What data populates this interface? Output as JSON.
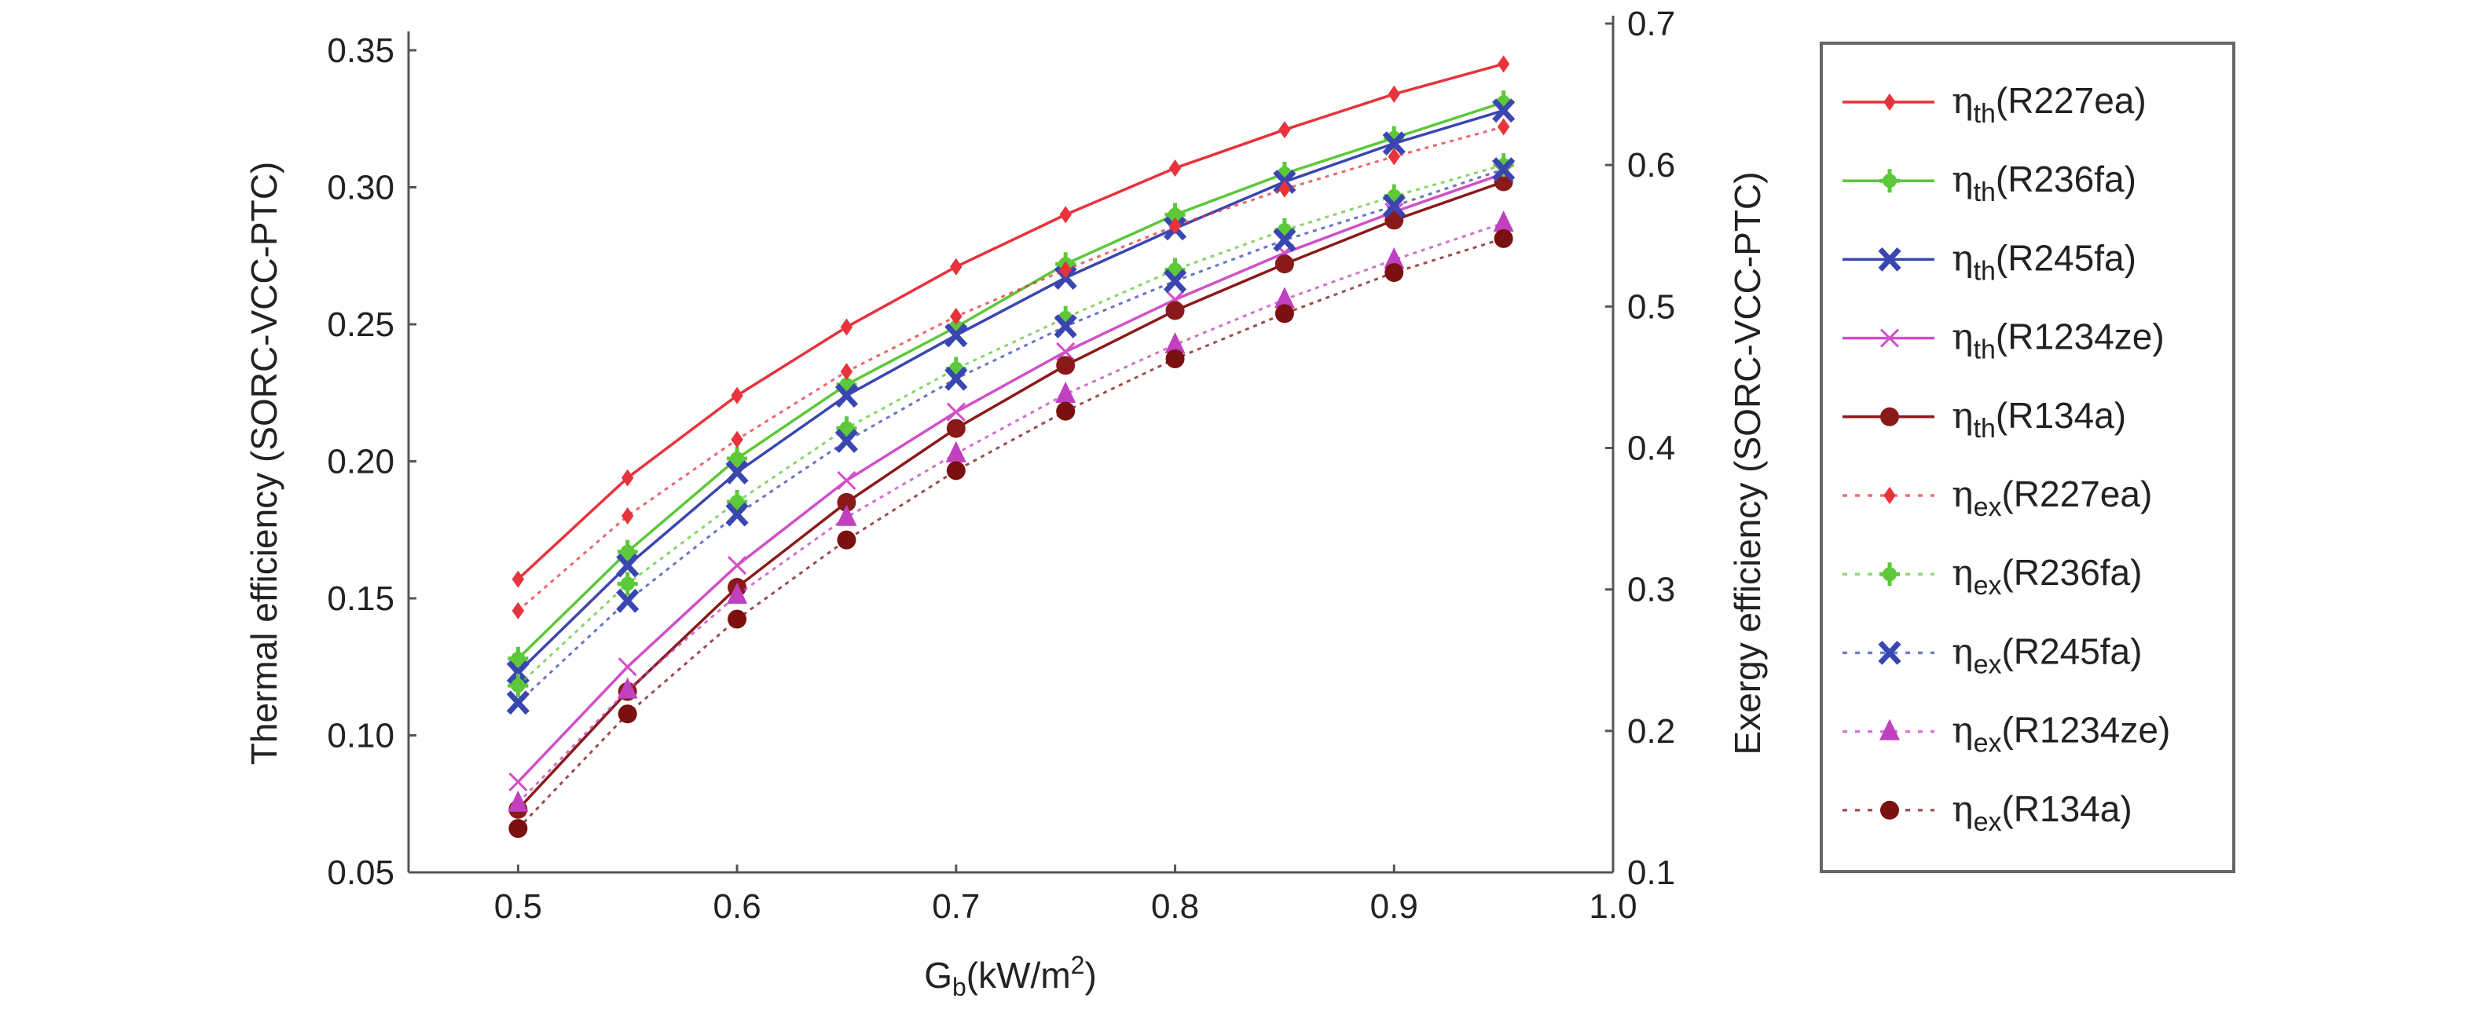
{
  "chart_data": {
    "type": "line",
    "title": "",
    "xlabel": "G",
    "xlabel_sub": "b",
    "xlabel_unit": "(kW/m",
    "xlabel_sup": "2",
    "xlabel_end": ")",
    "ylabel_left": "Thermal efficiency (SORC-VCC-PTC)",
    "ylabel_right": "Exergy efficiency (SORC-VCC-PTC)",
    "xlim": [
      0.45,
      1.0
    ],
    "ylim_left": [
      0.05,
      0.35
    ],
    "ylim_right": [
      0.1,
      0.7
    ],
    "xticks": [
      "0.5",
      "0.6",
      "0.7",
      "0.8",
      "0.9",
      "1.0"
    ],
    "yticks_left": [
      "0.05",
      "0.10",
      "0.15",
      "0.20",
      "0.25",
      "0.30",
      "0.35"
    ],
    "yticks_right": [
      "0.1",
      "0.2",
      "0.3",
      "0.4",
      "0.5",
      "0.6",
      "0.7"
    ],
    "legend_position": "right-outside",
    "x": [
      0.5,
      0.55,
      0.6,
      0.65,
      0.7,
      0.75,
      0.8,
      0.85,
      0.9,
      0.95
    ],
    "series": [
      {
        "name": "R227ea",
        "sym": "η",
        "sub": "th",
        "axis": "left",
        "color": "#e8323c",
        "dash": false,
        "marker": "diamond",
        "values": [
          0.157,
          0.194,
          0.224,
          0.249,
          0.271,
          0.29,
          0.307,
          0.321,
          0.334,
          0.345
        ]
      },
      {
        "name": "R236fa",
        "sym": "η",
        "sub": "th",
        "axis": "left",
        "color": "#5cc83a",
        "dash": false,
        "marker": "plus",
        "values": [
          0.128,
          0.167,
          0.201,
          0.228,
          0.249,
          0.272,
          0.29,
          0.305,
          0.318,
          0.331
        ]
      },
      {
        "name": "R245fa",
        "sym": "η",
        "sub": "th",
        "axis": "left",
        "color": "#3a46b0",
        "dash": false,
        "marker": "x",
        "values": [
          0.123,
          0.162,
          0.196,
          0.224,
          0.246,
          0.267,
          0.285,
          0.302,
          0.316,
          0.328
        ]
      },
      {
        "name": "R1234ze",
        "sym": "η",
        "sub": "th",
        "axis": "left",
        "color": "#d050c8",
        "dash": false,
        "marker": "thinx",
        "values": [
          0.083,
          0.125,
          0.162,
          0.193,
          0.218,
          0.24,
          0.259,
          0.276,
          0.291,
          0.305
        ]
      },
      {
        "name": "R134a",
        "sym": "η",
        "sub": "th",
        "axis": "left",
        "color": "#8a1a1a",
        "dash": false,
        "marker": "circle",
        "values": [
          0.073,
          0.116,
          0.154,
          0.185,
          0.212,
          0.235,
          0.255,
          0.272,
          0.288,
          0.302
        ]
      },
      {
        "name": "R227ea",
        "sym": "η",
        "sub": "ex",
        "axis": "right",
        "color": "#e8323c",
        "dash": true,
        "marker": "diamond",
        "values": [
          0.285,
          0.352,
          0.406,
          0.454,
          0.493,
          0.526,
          0.557,
          0.583,
          0.606,
          0.627
        ]
      },
      {
        "name": "R236fa",
        "sym": "η",
        "sub": "ex",
        "axis": "right",
        "color": "#5cc83a",
        "dash": true,
        "marker": "plus",
        "values": [
          0.232,
          0.304,
          0.362,
          0.414,
          0.456,
          0.492,
          0.526,
          0.554,
          0.578,
          0.6
        ]
      },
      {
        "name": "R245fa",
        "sym": "η",
        "sub": "ex",
        "axis": "right",
        "color": "#3a46b0",
        "dash": true,
        "marker": "x",
        "values": [
          0.22,
          0.292,
          0.353,
          0.405,
          0.449,
          0.486,
          0.518,
          0.547,
          0.571,
          0.597
        ]
      },
      {
        "name": "R1234ze",
        "sym": "η",
        "sub": "ex",
        "axis": "right",
        "color": "#c040c0",
        "dash": true,
        "marker": "triangle",
        "values": [
          0.149,
          0.229,
          0.296,
          0.351,
          0.396,
          0.438,
          0.473,
          0.505,
          0.533,
          0.559
        ]
      },
      {
        "name": "R134a",
        "sym": "η",
        "sub": "ex",
        "axis": "right",
        "color": "#7a1010",
        "dash": true,
        "marker": "circle",
        "values": [
          0.131,
          0.212,
          0.279,
          0.335,
          0.384,
          0.426,
          0.463,
          0.495,
          0.524,
          0.548
        ]
      }
    ]
  }
}
